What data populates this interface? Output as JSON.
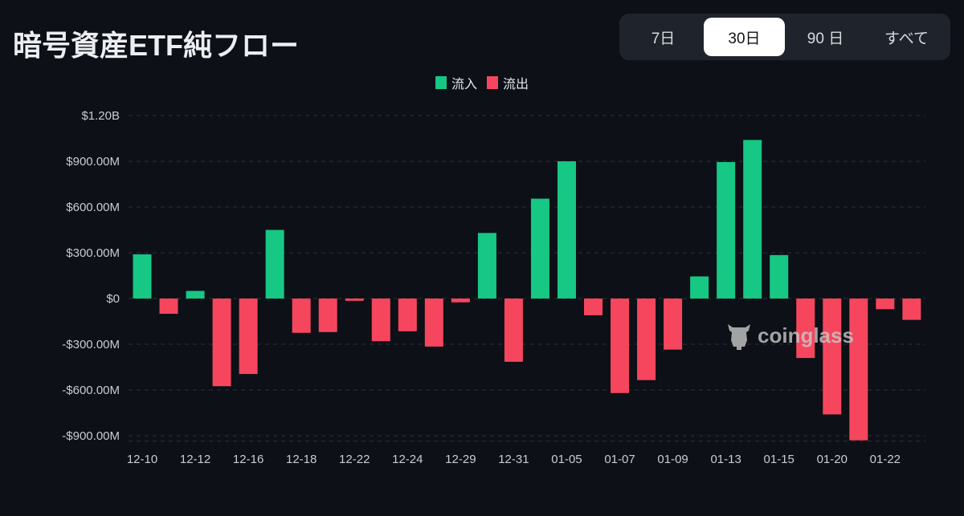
{
  "title": "暗号資産ETF純フロー",
  "range_selector": {
    "options": [
      "7日",
      "30日",
      "90 日",
      "すべて"
    ],
    "selected": "30日"
  },
  "watermark": "coinglass",
  "colors": {
    "inflow": "#17c784",
    "outflow": "#f6465d",
    "background": "#0d1017"
  },
  "chart_data": {
    "type": "bar",
    "legend": [
      {
        "name": "流入",
        "color": "#17c784"
      },
      {
        "name": "流出",
        "color": "#f6465d"
      }
    ],
    "legend_position": "top-center",
    "grid": true,
    "ylim": [
      -930,
      1200
    ],
    "y_unit": "M USD",
    "y_ticks": [
      {
        "value": 1200,
        "label": "$1.20B"
      },
      {
        "value": 900,
        "label": "$900.00M"
      },
      {
        "value": 600,
        "label": "$600.00M"
      },
      {
        "value": 300,
        "label": "$300.00M"
      },
      {
        "value": 0,
        "label": "$0"
      },
      {
        "value": -300,
        "label": "-$300.00M"
      },
      {
        "value": -600,
        "label": "-$600.00M"
      },
      {
        "value": -900,
        "label": "-$900.00M"
      }
    ],
    "x_tick_labels": [
      "12-10",
      "12-12",
      "12-16",
      "12-18",
      "12-22",
      "12-24",
      "12-29",
      "12-31",
      "01-05",
      "01-07",
      "01-09",
      "01-13",
      "01-15",
      "01-20",
      "01-22"
    ],
    "values": [
      290,
      -100,
      50,
      -575,
      -495,
      450,
      -225,
      -220,
      -15,
      -280,
      -215,
      -315,
      -25,
      430,
      -415,
      655,
      900,
      -110,
      -620,
      -535,
      -335,
      145,
      895,
      1040,
      285,
      -390,
      -760,
      -930,
      -70,
      -140
    ]
  }
}
